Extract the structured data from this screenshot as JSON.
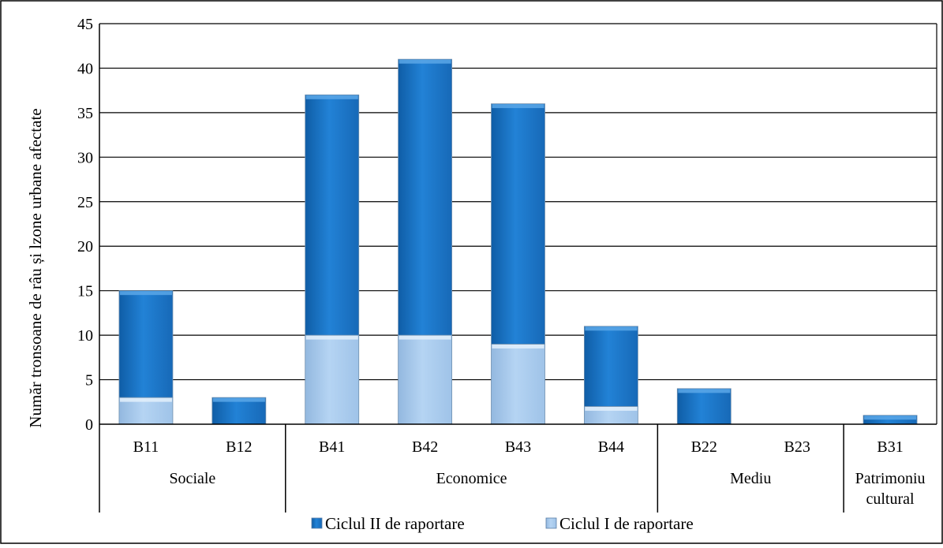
{
  "chart_data": {
    "type": "bar",
    "stacked": true,
    "title": "",
    "xlabel": "",
    "ylabel": "Număr tronsoane de râu și lzone urbane afectate",
    "ylim": [
      0,
      45
    ],
    "yticks": [
      0,
      5,
      10,
      15,
      20,
      25,
      30,
      35,
      40,
      45
    ],
    "grid": true,
    "legend_position": "bottom",
    "categories": [
      "B11",
      "B12",
      "B41",
      "B42",
      "B43",
      "B44",
      "B22",
      "B23",
      "B31"
    ],
    "groups": [
      {
        "label": "Sociale",
        "count": 2
      },
      {
        "label": "Economice",
        "count": 4
      },
      {
        "label": "Mediu",
        "count": 2
      },
      {
        "label": "Patrimoniu cultural",
        "lines": [
          "Patrimoniu",
          "cultural"
        ],
        "count": 1
      }
    ],
    "series": [
      {
        "name": "Ciclul I de raportare",
        "color": "#a9cbef",
        "values": [
          3,
          0,
          10,
          10,
          9,
          2,
          0,
          0,
          0
        ]
      },
      {
        "name": "Ciclul II de raportare",
        "color": "#1b77c7",
        "values": [
          12,
          3,
          27,
          31,
          27,
          9,
          4,
          0,
          1
        ]
      }
    ],
    "legend_order": [
      "Ciclul II de raportare",
      "Ciclul I de raportare"
    ]
  }
}
